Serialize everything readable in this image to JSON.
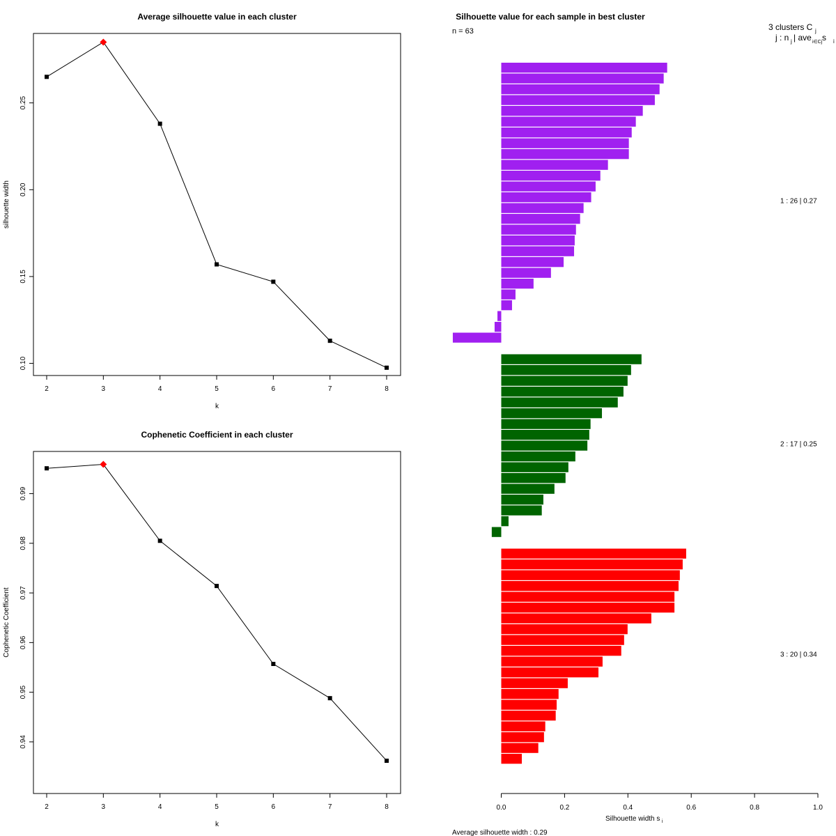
{
  "chart_data": [
    {
      "type": "line",
      "title": "Average silhouette value in each cluster",
      "xlabel": "k",
      "ylabel": "silhouette width",
      "x": [
        2,
        3,
        4,
        5,
        6,
        7,
        8
      ],
      "values": [
        0.265,
        0.285,
        0.238,
        0.157,
        0.147,
        0.113,
        0.0975
      ],
      "highlight_k": 3,
      "xticks": [
        "2",
        "3",
        "4",
        "5",
        "6",
        "7",
        "8"
      ],
      "yticks": [
        0.1,
        0.15,
        0.2,
        0.25
      ],
      "ytick_labels": [
        "0.10",
        "0.15",
        "0.20",
        "0.25"
      ],
      "ylim": [
        0.093,
        0.29
      ],
      "marker_color": "#000000",
      "highlight_color": "#ff0000"
    },
    {
      "type": "line",
      "title": "Cophenetic Coefficient in each cluster",
      "xlabel": "k",
      "ylabel": "Cophenetic Coefficient",
      "x": [
        2,
        3,
        4,
        5,
        6,
        7,
        8
      ],
      "values": [
        0.9951,
        0.9959,
        0.9805,
        0.9714,
        0.9557,
        0.9488,
        0.9362
      ],
      "highlight_k": 3,
      "xticks": [
        "2",
        "3",
        "4",
        "5",
        "6",
        "7",
        "8"
      ],
      "yticks": [
        0.94,
        0.95,
        0.96,
        0.97,
        0.98,
        0.99
      ],
      "ytick_labels": [
        "0.94",
        "0.95",
        "0.96",
        "0.97",
        "0.98",
        "0.99"
      ],
      "ylim": [
        0.9296,
        0.9985
      ],
      "marker_color": "#000000",
      "highlight_color": "#ff0000"
    },
    {
      "type": "bar",
      "title": "Silhouette value for each sample in best cluster",
      "n_label": "n = 63",
      "header_line1": "3  clusters  C",
      "header_sub1": "j",
      "header_line2": "j :  n",
      "header_sub2": "j",
      "header_line2b": " | ave",
      "header_sub3": "i∈Cj",
      "header_line2c": "  s",
      "header_sub4": "i",
      "xlabel": "Silhouette width s",
      "xlabel_sub": "i",
      "xticks": [
        0,
        0.2,
        0.4,
        0.6,
        0.8,
        1.0
      ],
      "xtick_labels": [
        "0.0",
        "0.2",
        "0.4",
        "0.6",
        "0.8",
        "1.0"
      ],
      "xlim": [
        0,
        1
      ],
      "footer": "Average silhouette width :  0.29",
      "clusters": [
        {
          "label": "1 :   26  |  0.27",
          "color": "#a020f0",
          "values": [
            0.524,
            0.513,
            0.5,
            0.485,
            0.447,
            0.425,
            0.412,
            0.403,
            0.403,
            0.337,
            0.313,
            0.298,
            0.284,
            0.26,
            0.249,
            0.236,
            0.232,
            0.23,
            0.197,
            0.157,
            0.102,
            0.045,
            0.034,
            -0.012,
            -0.021,
            -0.153
          ]
        },
        {
          "label": "2 :   17  |  0.25",
          "color": "#006400",
          "values": [
            0.443,
            0.41,
            0.399,
            0.386,
            0.368,
            0.318,
            0.282,
            0.278,
            0.272,
            0.234,
            0.212,
            0.203,
            0.168,
            0.133,
            0.128,
            0.023,
            -0.03
          ]
        },
        {
          "label": "3 :   20  |  0.34",
          "color": "#ff0000",
          "values": [
            0.584,
            0.573,
            0.564,
            0.56,
            0.547,
            0.547,
            0.474,
            0.399,
            0.388,
            0.379,
            0.32,
            0.307,
            0.21,
            0.181,
            0.175,
            0.172,
            0.139,
            0.135,
            0.117,
            0.065
          ]
        }
      ]
    }
  ]
}
